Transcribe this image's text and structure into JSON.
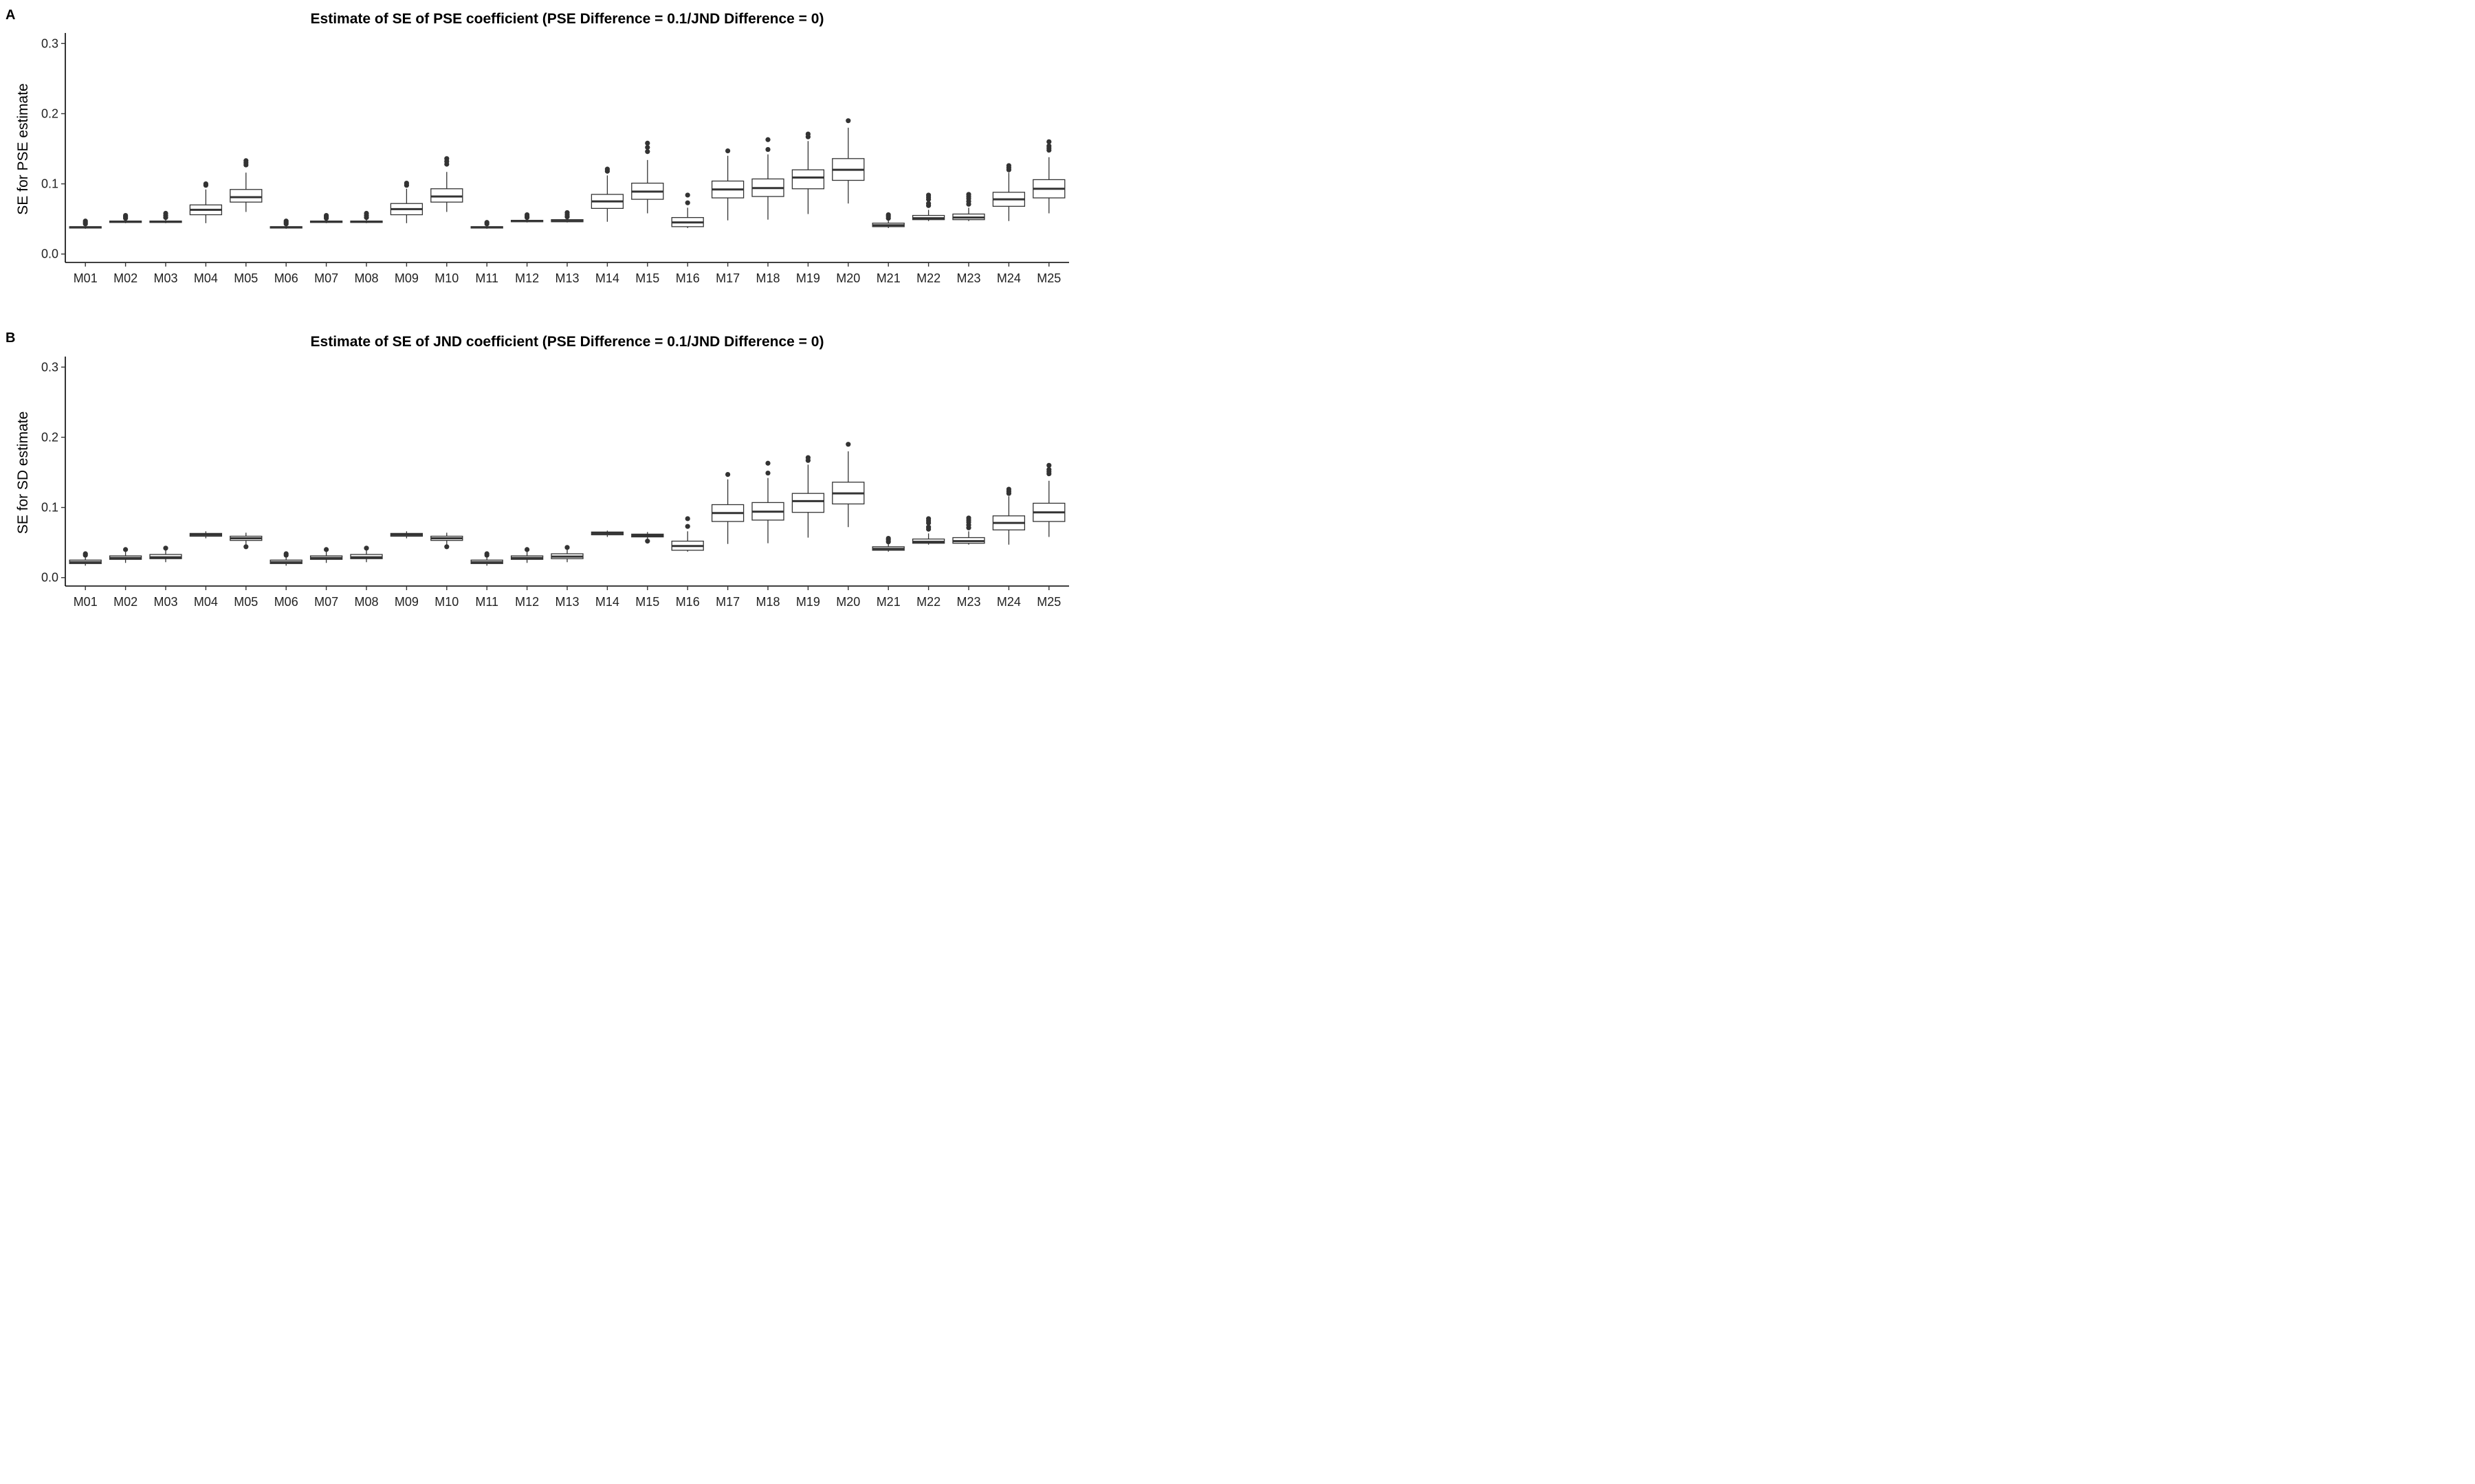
{
  "chart_data": [
    {
      "type": "box",
      "panel_label": "A",
      "title": "Estimate of SE of PSE coefficient (PSE Difference = 0.1/JND Difference = 0)",
      "xlabel": "",
      "ylabel": "SE for PSE estimate",
      "ylim": [
        -0.012,
        0.315
      ],
      "y_ticks": [
        0.0,
        0.1,
        0.2,
        0.3
      ],
      "y_tick_labels": [
        "0.0",
        "0.1",
        "0.2",
        "0.3"
      ],
      "grid": false,
      "categories": [
        "M01",
        "M02",
        "M03",
        "M04",
        "M05",
        "M06",
        "M07",
        "M08",
        "M09",
        "M10",
        "M11",
        "M12",
        "M13",
        "M14",
        "M15",
        "M16",
        "M17",
        "M18",
        "M19",
        "M20",
        "M21",
        "M22",
        "M23",
        "M24",
        "M25"
      ],
      "boxes": [
        {
          "lower": 0.036,
          "q1": 0.037,
          "median": 0.038,
          "q3": 0.039,
          "upper": 0.041,
          "outliers": [
            0.043,
            0.045,
            0.047
          ]
        },
        {
          "lower": 0.044,
          "q1": 0.045,
          "median": 0.046,
          "q3": 0.047,
          "upper": 0.049,
          "outliers": [
            0.051,
            0.053,
            0.055
          ]
        },
        {
          "lower": 0.044,
          "q1": 0.045,
          "median": 0.046,
          "q3": 0.047,
          "upper": 0.05,
          "outliers": [
            0.052,
            0.055,
            0.058
          ]
        },
        {
          "lower": 0.044,
          "q1": 0.056,
          "median": 0.063,
          "q3": 0.07,
          "upper": 0.092,
          "outliers": [
            0.098,
            0.1
          ]
        },
        {
          "lower": 0.06,
          "q1": 0.074,
          "median": 0.081,
          "q3": 0.092,
          "upper": 0.116,
          "outliers": [
            0.127,
            0.13,
            0.133
          ]
        },
        {
          "lower": 0.036,
          "q1": 0.037,
          "median": 0.038,
          "q3": 0.039,
          "upper": 0.041,
          "outliers": [
            0.043,
            0.045,
            0.047
          ]
        },
        {
          "lower": 0.044,
          "q1": 0.045,
          "median": 0.046,
          "q3": 0.047,
          "upper": 0.049,
          "outliers": [
            0.051,
            0.053,
            0.055
          ]
        },
        {
          "lower": 0.044,
          "q1": 0.045,
          "median": 0.046,
          "q3": 0.047,
          "upper": 0.05,
          "outliers": [
            0.052,
            0.055,
            0.058
          ]
        },
        {
          "lower": 0.044,
          "q1": 0.056,
          "median": 0.064,
          "q3": 0.072,
          "upper": 0.093,
          "outliers": [
            0.098,
            0.101
          ]
        },
        {
          "lower": 0.06,
          "q1": 0.074,
          "median": 0.082,
          "q3": 0.093,
          "upper": 0.117,
          "outliers": [
            0.128,
            0.132,
            0.136
          ]
        },
        {
          "lower": 0.036,
          "q1": 0.037,
          "median": 0.038,
          "q3": 0.039,
          "upper": 0.041,
          "outliers": [
            0.043,
            0.045
          ]
        },
        {
          "lower": 0.045,
          "q1": 0.046,
          "median": 0.047,
          "q3": 0.048,
          "upper": 0.05,
          "outliers": [
            0.052,
            0.054,
            0.056
          ]
        },
        {
          "lower": 0.045,
          "q1": 0.046,
          "median": 0.047,
          "q3": 0.049,
          "upper": 0.051,
          "outliers": [
            0.053,
            0.056,
            0.059
          ]
        },
        {
          "lower": 0.046,
          "q1": 0.065,
          "median": 0.075,
          "q3": 0.085,
          "upper": 0.112,
          "outliers": [
            0.118,
            0.121
          ]
        },
        {
          "lower": 0.058,
          "q1": 0.078,
          "median": 0.089,
          "q3": 0.101,
          "upper": 0.134,
          "outliers": [
            0.146,
            0.152,
            0.158
          ]
        },
        {
          "lower": 0.037,
          "q1": 0.039,
          "median": 0.045,
          "q3": 0.052,
          "upper": 0.066,
          "outliers": [
            0.073,
            0.084
          ]
        },
        {
          "lower": 0.048,
          "q1": 0.08,
          "median": 0.092,
          "q3": 0.104,
          "upper": 0.14,
          "outliers": [
            0.147
          ]
        },
        {
          "lower": 0.049,
          "q1": 0.082,
          "median": 0.094,
          "q3": 0.107,
          "upper": 0.142,
          "outliers": [
            0.149,
            0.163
          ]
        },
        {
          "lower": 0.057,
          "q1": 0.093,
          "median": 0.109,
          "q3": 0.12,
          "upper": 0.161,
          "outliers": [
            0.167,
            0.171
          ]
        },
        {
          "lower": 0.072,
          "q1": 0.105,
          "median": 0.12,
          "q3": 0.136,
          "upper": 0.18,
          "outliers": [
            0.19
          ]
        },
        {
          "lower": 0.037,
          "q1": 0.039,
          "median": 0.041,
          "q3": 0.044,
          "upper": 0.048,
          "outliers": [
            0.051,
            0.054,
            0.056
          ]
        },
        {
          "lower": 0.047,
          "q1": 0.049,
          "median": 0.051,
          "q3": 0.055,
          "upper": 0.063,
          "outliers": [
            0.069,
            0.072,
            0.078,
            0.081,
            0.084
          ]
        },
        {
          "lower": 0.047,
          "q1": 0.049,
          "median": 0.052,
          "q3": 0.057,
          "upper": 0.066,
          "outliers": [
            0.071,
            0.075,
            0.079,
            0.082,
            0.085
          ]
        },
        {
          "lower": 0.047,
          "q1": 0.068,
          "median": 0.078,
          "q3": 0.088,
          "upper": 0.116,
          "outliers": [
            0.12,
            0.123,
            0.126
          ]
        },
        {
          "lower": 0.058,
          "q1": 0.08,
          "median": 0.093,
          "q3": 0.106,
          "upper": 0.138,
          "outliers": [
            0.148,
            0.151,
            0.154,
            0.16
          ]
        }
      ]
    },
    {
      "type": "box",
      "panel_label": "B",
      "title": "Estimate of SE of JND coefficient (PSE Difference = 0.1/JND Difference = 0)",
      "xlabel": "",
      "ylabel": "SE for SD estimate",
      "ylim": [
        -0.012,
        0.315
      ],
      "y_ticks": [
        0.0,
        0.1,
        0.2,
        0.3
      ],
      "y_tick_labels": [
        "0.0",
        "0.1",
        "0.2",
        "0.3"
      ],
      "grid": false,
      "categories": [
        "M01",
        "M02",
        "M03",
        "M04",
        "M05",
        "M06",
        "M07",
        "M08",
        "M09",
        "M10",
        "M11",
        "M12",
        "M13",
        "M14",
        "M15",
        "M16",
        "M17",
        "M18",
        "M19",
        "M20",
        "M21",
        "M22",
        "M23",
        "M24",
        "M25"
      ],
      "boxes": [
        {
          "lower": 0.017,
          "q1": 0.02,
          "median": 0.022,
          "q3": 0.025,
          "upper": 0.03,
          "outliers": [
            0.032,
            0.034
          ]
        },
        {
          "lower": 0.021,
          "q1": 0.026,
          "median": 0.028,
          "q3": 0.031,
          "upper": 0.037,
          "outliers": [
            0.04
          ]
        },
        {
          "lower": 0.022,
          "q1": 0.027,
          "median": 0.029,
          "q3": 0.033,
          "upper": 0.039,
          "outliers": [
            0.042
          ]
        },
        {
          "lower": 0.056,
          "q1": 0.059,
          "median": 0.061,
          "q3": 0.063,
          "upper": 0.066,
          "outliers": []
        },
        {
          "lower": 0.047,
          "q1": 0.053,
          "median": 0.056,
          "q3": 0.059,
          "upper": 0.064,
          "outliers": [
            0.044
          ]
        },
        {
          "lower": 0.017,
          "q1": 0.02,
          "median": 0.022,
          "q3": 0.025,
          "upper": 0.03,
          "outliers": [
            0.032,
            0.034
          ]
        },
        {
          "lower": 0.021,
          "q1": 0.026,
          "median": 0.028,
          "q3": 0.031,
          "upper": 0.037,
          "outliers": [
            0.04
          ]
        },
        {
          "lower": 0.022,
          "q1": 0.027,
          "median": 0.029,
          "q3": 0.033,
          "upper": 0.039,
          "outliers": [
            0.042
          ]
        },
        {
          "lower": 0.056,
          "q1": 0.059,
          "median": 0.061,
          "q3": 0.063,
          "upper": 0.066,
          "outliers": []
        },
        {
          "lower": 0.047,
          "q1": 0.053,
          "median": 0.056,
          "q3": 0.059,
          "upper": 0.064,
          "outliers": [
            0.044
          ]
        },
        {
          "lower": 0.017,
          "q1": 0.02,
          "median": 0.022,
          "q3": 0.025,
          "upper": 0.03,
          "outliers": [
            0.032,
            0.034
          ]
        },
        {
          "lower": 0.021,
          "q1": 0.026,
          "median": 0.028,
          "q3": 0.031,
          "upper": 0.037,
          "outliers": [
            0.04
          ]
        },
        {
          "lower": 0.022,
          "q1": 0.027,
          "median": 0.03,
          "q3": 0.034,
          "upper": 0.04,
          "outliers": [
            0.043
          ]
        },
        {
          "lower": 0.058,
          "q1": 0.061,
          "median": 0.063,
          "q3": 0.065,
          "upper": 0.067,
          "outliers": []
        },
        {
          "lower": 0.055,
          "q1": 0.058,
          "median": 0.06,
          "q3": 0.062,
          "upper": 0.065,
          "outliers": [
            0.052
          ]
        },
        {
          "lower": 0.037,
          "q1": 0.039,
          "median": 0.045,
          "q3": 0.052,
          "upper": 0.066,
          "outliers": [
            0.073,
            0.084
          ]
        },
        {
          "lower": 0.048,
          "q1": 0.08,
          "median": 0.092,
          "q3": 0.104,
          "upper": 0.14,
          "outliers": [
            0.147
          ]
        },
        {
          "lower": 0.049,
          "q1": 0.082,
          "median": 0.094,
          "q3": 0.107,
          "upper": 0.142,
          "outliers": [
            0.149,
            0.163
          ]
        },
        {
          "lower": 0.057,
          "q1": 0.093,
          "median": 0.109,
          "q3": 0.12,
          "upper": 0.161,
          "outliers": [
            0.167,
            0.171
          ]
        },
        {
          "lower": 0.072,
          "q1": 0.105,
          "median": 0.12,
          "q3": 0.136,
          "upper": 0.18,
          "outliers": [
            0.19
          ]
        },
        {
          "lower": 0.037,
          "q1": 0.039,
          "median": 0.041,
          "q3": 0.044,
          "upper": 0.048,
          "outliers": [
            0.051,
            0.054,
            0.056
          ]
        },
        {
          "lower": 0.047,
          "q1": 0.049,
          "median": 0.051,
          "q3": 0.055,
          "upper": 0.063,
          "outliers": [
            0.069,
            0.072,
            0.078,
            0.081,
            0.084
          ]
        },
        {
          "lower": 0.047,
          "q1": 0.049,
          "median": 0.052,
          "q3": 0.057,
          "upper": 0.066,
          "outliers": [
            0.071,
            0.075,
            0.079,
            0.082,
            0.085
          ]
        },
        {
          "lower": 0.047,
          "q1": 0.068,
          "median": 0.078,
          "q3": 0.088,
          "upper": 0.116,
          "outliers": [
            0.12,
            0.123,
            0.126
          ]
        },
        {
          "lower": 0.058,
          "q1": 0.08,
          "median": 0.093,
          "q3": 0.106,
          "upper": 0.138,
          "outliers": [
            0.148,
            0.151,
            0.154,
            0.16
          ]
        }
      ]
    }
  ]
}
